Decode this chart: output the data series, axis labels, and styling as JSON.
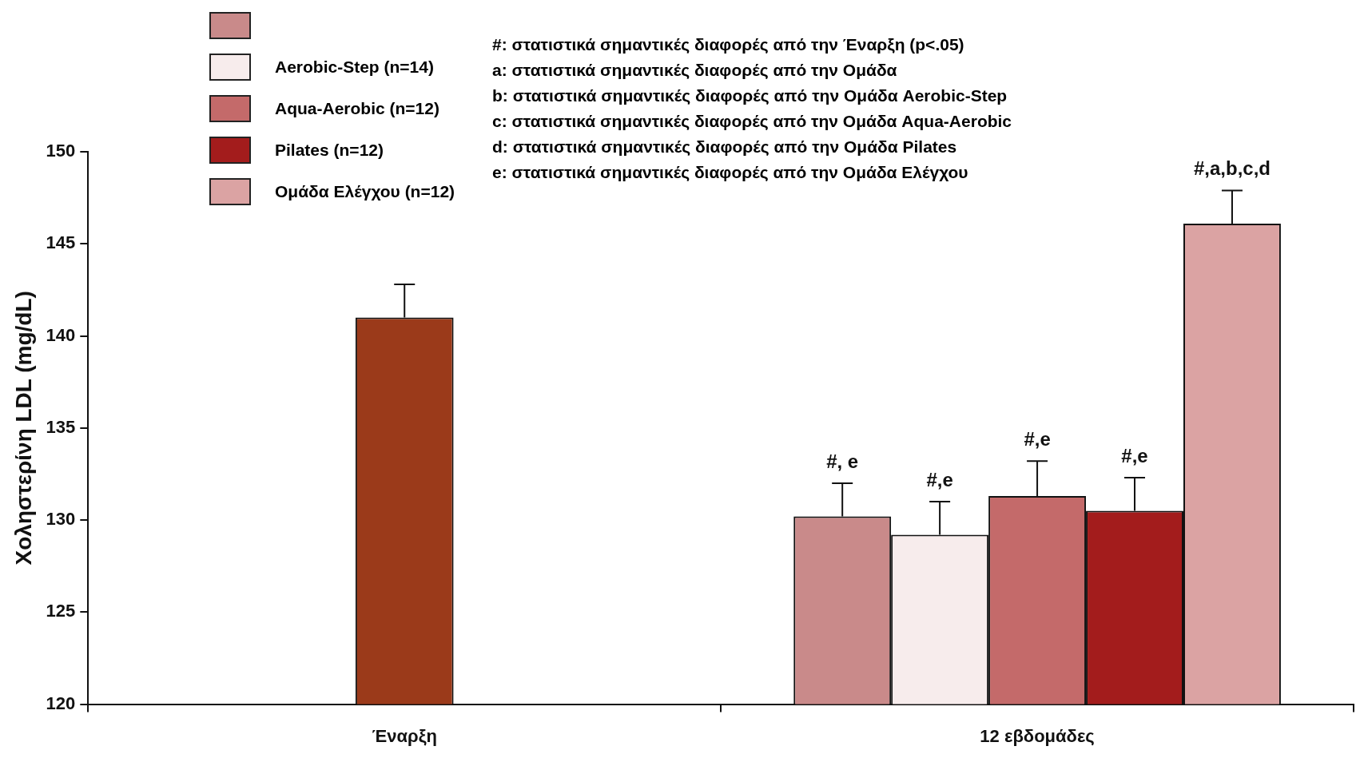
{
  "chart_data": {
    "type": "bar",
    "ylabel": "Χοληστερίνη LDL (mg/dL)",
    "categories": [
      "Έναρξη",
      "12 εβδομάδες"
    ],
    "series": [
      {
        "color": "#9b3a1a",
        "values": [
          141.0,
          null
        ],
        "errors": [
          [
            141.0,
            142.8
          ],
          null
        ]
      },
      {
        "color": "#c98a8a",
        "values": [
          null,
          130.2
        ],
        "errors": [
          null,
          [
            130.2,
            132.0
          ]
        ],
        "value_labels": [
          null,
          "#, e"
        ]
      },
      {
        "name": "Aerobic-Step (n=14)",
        "color": "#f7ecec",
        "values": [
          null,
          129.2
        ],
        "errors": [
          null,
          [
            129.2,
            131.0
          ]
        ],
        "value_labels": [
          null,
          "#,e"
        ]
      },
      {
        "name": "Aqua-Aerobic (n=12)",
        "color": "#c46a6a",
        "values": [
          null,
          131.3
        ],
        "errors": [
          null,
          [
            131.3,
            133.2
          ]
        ],
        "value_labels": [
          null,
          "#,e"
        ]
      },
      {
        "name": "Pilates (n=12)",
        "color": "#a31c1c",
        "values": [
          null,
          130.5
        ],
        "errors": [
          null,
          [
            130.5,
            132.3
          ]
        ],
        "value_labels": [
          null,
          "#,e"
        ]
      },
      {
        "name": "Ομάδα Ελέγχου (n=12)",
        "color": "#dba3a3",
        "values": [
          null,
          146.1
        ],
        "errors": [
          null,
          [
            146.1,
            147.9
          ]
        ],
        "value_labels": [
          null,
          "#,a,b,c,d"
        ]
      }
    ],
    "ylim": [
      120,
      150
    ],
    "yticks": [
      120,
      125,
      130,
      135,
      140,
      145,
      150
    ],
    "grid": false,
    "legend": "top left",
    "annotations": [
      "#: στατιστικά σημαντικές διαφορές από την Έναρξη (p<.05)",
      "a: στατιστικά σημαντικές διαφορές από την Ομάδα",
      "b: στατιστικά σημαντικές διαφορές από την Ομάδα Aerobic-Step",
      "c: στατιστικά σημαντικές διαφορές από την Ομάδα Aqua-Aerobic",
      "d: στατιστικά σημαντικές διαφορές από την Ομάδα Pilates",
      "e: στατιστικά σημαντικές διαφορές από την Ομάδα Ελέγχου"
    ]
  }
}
